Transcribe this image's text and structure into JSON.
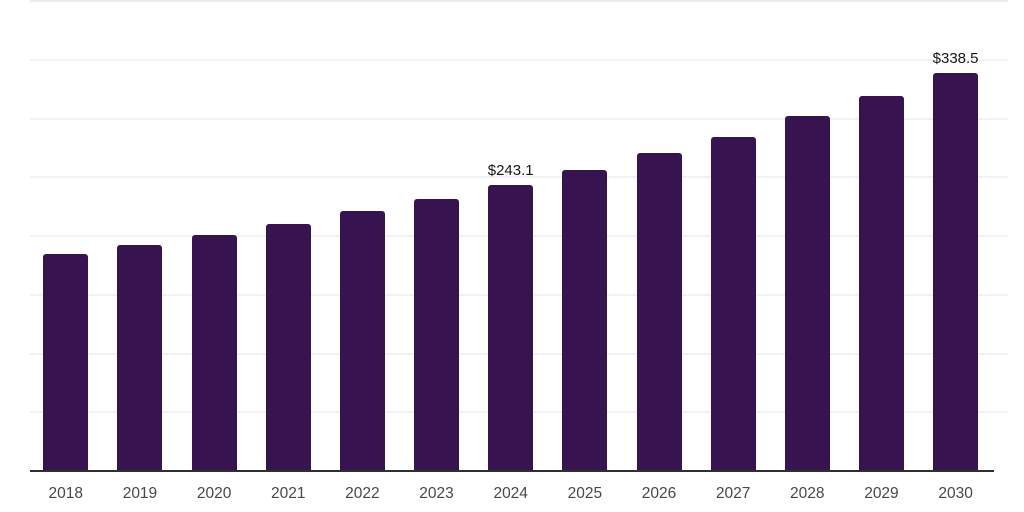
{
  "chart_data": {
    "type": "bar",
    "title": "",
    "xlabel": "",
    "ylabel": "",
    "categories": [
      "2018",
      "2019",
      "2020",
      "2021",
      "2022",
      "2023",
      "2024",
      "2025",
      "2026",
      "2027",
      "2028",
      "2029",
      "2030"
    ],
    "values": [
      184.5,
      192.1,
      200.6,
      210.4,
      221.0,
      231.6,
      243.1,
      256.3,
      270.5,
      284.6,
      302.2,
      319.2,
      338.5
    ],
    "data_labels": [
      {
        "category": "2024",
        "text": "$243.1"
      },
      {
        "category": "2030",
        "text": "$338.5"
      }
    ],
    "ylim": [
      0,
      400
    ],
    "grid_step": 50,
    "grid": "horizontal-only",
    "y_tick_labels_visible": false,
    "legend": "none",
    "colors": {
      "bar": "#371450",
      "grid": "#f2f2f5",
      "top_grid": "#ebebee",
      "axis_line": "#2f2f33",
      "tick_label": "#48484c",
      "data_label": "#17171a",
      "background": "#ffffff"
    }
  }
}
